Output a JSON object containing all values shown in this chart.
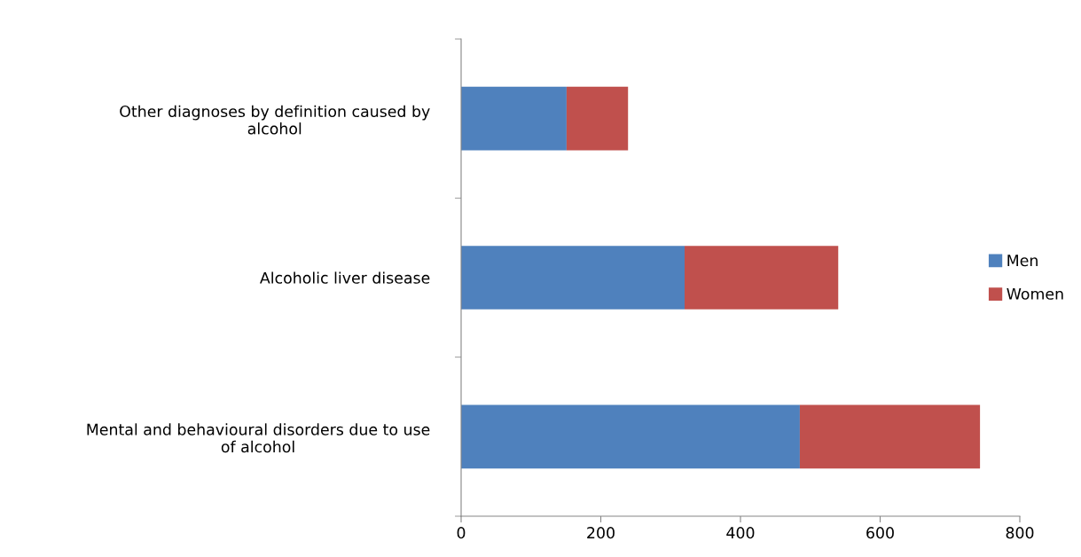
{
  "chart_data": {
    "type": "bar",
    "orientation": "horizontal",
    "stacked": true,
    "categories": [
      "Other diagnoses by definition caused by\nalcohol",
      "Alcoholic liver disease",
      "Mental and behavioural disorders due to use\nof alcohol"
    ],
    "series": [
      {
        "name": "Men",
        "color": "#4f81bd",
        "values": [
          151,
          320,
          485
        ]
      },
      {
        "name": "Women",
        "color": "#c0504d",
        "values": [
          88,
          220,
          258
        ]
      }
    ],
    "xlim": [
      0,
      800
    ],
    "xticks": [
      0,
      200,
      400,
      600,
      800
    ],
    "grid": false,
    "legend": "right"
  }
}
